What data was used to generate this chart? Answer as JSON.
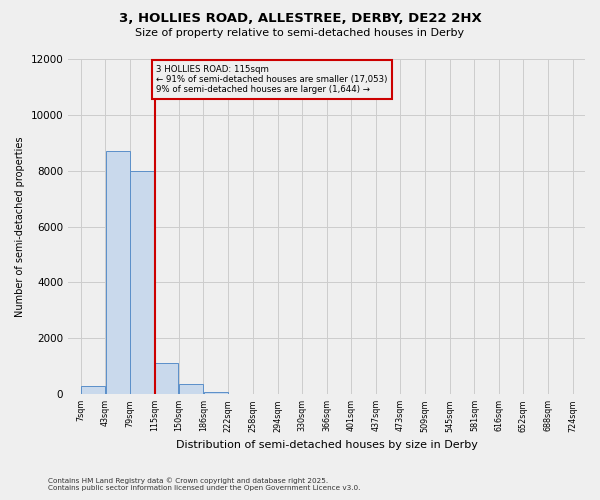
{
  "title_line1": "3, HOLLIES ROAD, ALLESTREE, DERBY, DE22 2HX",
  "title_line2": "Size of property relative to semi-detached houses in Derby",
  "xlabel": "Distribution of semi-detached houses by size in Derby",
  "ylabel": "Number of semi-detached properties",
  "property_label": "3 HOLLIES ROAD: 115sqm",
  "annotation_line2": "← 91% of semi-detached houses are smaller (17,053)",
  "annotation_line3": "9% of semi-detached houses are larger (1,644) →",
  "footer_line1": "Contains HM Land Registry data © Crown copyright and database right 2025.",
  "footer_line2": "Contains public sector information licensed under the Open Government Licence v3.0.",
  "bins": [
    7,
    43,
    79,
    115,
    150,
    186,
    222,
    258,
    294,
    330,
    366,
    401,
    437,
    473,
    509,
    545,
    581,
    616,
    652,
    688,
    724
  ],
  "bin_labels": [
    "7sqm",
    "43sqm",
    "79sqm",
    "115sqm",
    "150sqm",
    "186sqm",
    "222sqm",
    "258sqm",
    "294sqm",
    "330sqm",
    "366sqm",
    "401sqm",
    "437sqm",
    "473sqm",
    "509sqm",
    "545sqm",
    "581sqm",
    "616sqm",
    "652sqm",
    "688sqm",
    "724sqm"
  ],
  "counts": [
    300,
    8700,
    8000,
    1100,
    350,
    80,
    20,
    0,
    0,
    0,
    0,
    0,
    0,
    0,
    0,
    0,
    0,
    0,
    0,
    0
  ],
  "bar_color": "#c9d9ec",
  "bar_edge_color": "#5b8fc9",
  "red_line_color": "#cc0000",
  "grid_color": "#cccccc",
  "bg_color": "#efefef",
  "ylim": [
    0,
    12000
  ],
  "yticks": [
    0,
    2000,
    4000,
    6000,
    8000,
    10000,
    12000
  ],
  "red_line_x": 115
}
